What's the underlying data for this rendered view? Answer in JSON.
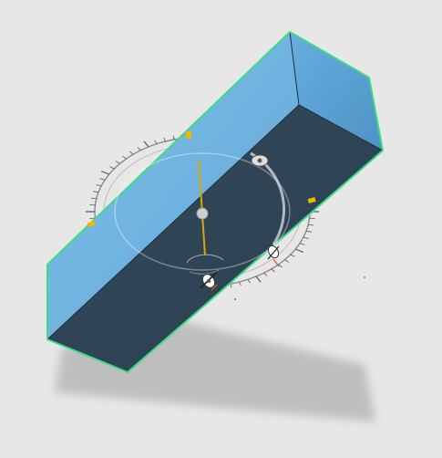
{
  "viewport": {
    "background": "#e7e7e7"
  },
  "model": {
    "face_top_color": "#6fb3e0",
    "face_right_color": "#5a9ecd",
    "face_front_color": "#2e4658",
    "selection_outline_color": "#3ddc84",
    "shadow_color": "#b9b9b9"
  },
  "gizmo": {
    "type": "rotation-dial",
    "tick_color": "#555555",
    "axis_marker_color": "#f2b705",
    "needle_color": "#d4a80a",
    "handle_icons": [
      "rotate-handle-icon",
      "move-handle-icon",
      "scale-handle-icon"
    ]
  }
}
